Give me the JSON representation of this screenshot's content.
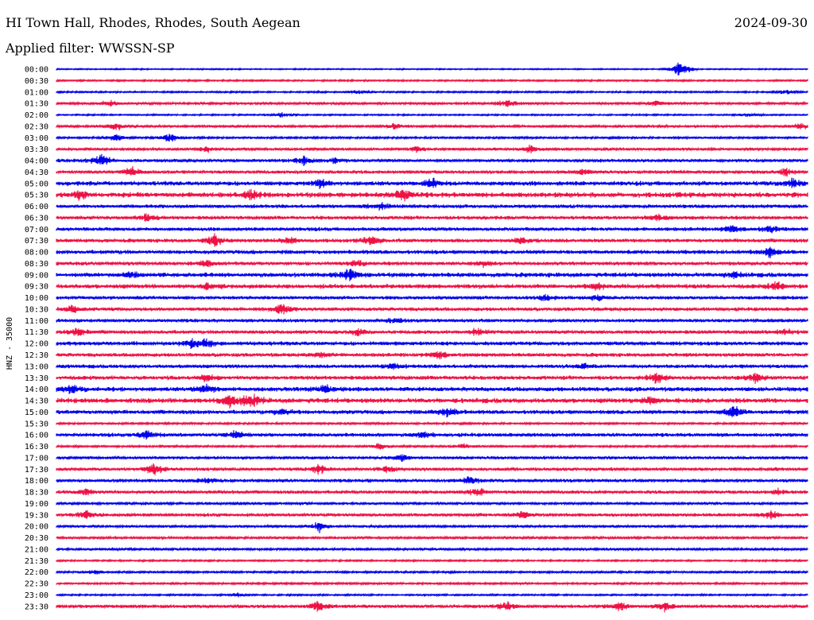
{
  "header": {
    "station": "HI Town Hall, Rhodes, Rhodes, South Aegean",
    "date": "2024-09-30",
    "filter": "Applied filter: WWSSN-SP"
  },
  "colors": {
    "even": "#0000ee",
    "odd": "#ee1144"
  },
  "chart_data": {
    "type": "line",
    "title": "HI Town Hall, Rhodes, Rhodes, South Aegean",
    "ylabel": "HNZ - 35000",
    "xlabel": "",
    "tick_labels": [
      "00:00",
      "00:30",
      "01:00",
      "01:30",
      "02:00",
      "02:30",
      "03:00",
      "03:30",
      "04:00",
      "04:30",
      "05:00",
      "05:30",
      "06:00",
      "06:30",
      "07:00",
      "07:30",
      "08:00",
      "08:30",
      "09:00",
      "09:30",
      "10:00",
      "10:30",
      "11:00",
      "11:30",
      "12:00",
      "12:30",
      "13:00",
      "13:30",
      "14:00",
      "14:30",
      "15:00",
      "15:30",
      "16:00",
      "16:30",
      "17:00",
      "17:30",
      "18:00",
      "18:30",
      "19:00",
      "19:30",
      "20:00",
      "20:30",
      "21:00",
      "21:30",
      "22:00",
      "22:30",
      "23:00",
      "23:30"
    ],
    "series": [
      {
        "noise": 0.6,
        "events": [
          [
            0.83,
            12
          ]
        ]
      },
      {
        "noise": 0.8,
        "events": []
      },
      {
        "noise": 0.8,
        "events": [
          [
            0.4,
            3
          ],
          [
            0.97,
            3
          ]
        ]
      },
      {
        "noise": 1.2,
        "events": [
          [
            0.07,
            4
          ],
          [
            0.6,
            6
          ],
          [
            0.8,
            4
          ]
        ]
      },
      {
        "noise": 0.7,
        "events": [
          [
            0.3,
            3
          ],
          [
            0.92,
            3
          ]
        ]
      },
      {
        "noise": 1.2,
        "events": [
          [
            0.08,
            5
          ],
          [
            0.45,
            4
          ],
          [
            0.99,
            4
          ]
        ]
      },
      {
        "noise": 1.0,
        "events": [
          [
            0.08,
            5
          ],
          [
            0.15,
            6
          ]
        ]
      },
      {
        "noise": 1.3,
        "events": [
          [
            0.2,
            4
          ],
          [
            0.48,
            4
          ],
          [
            0.63,
            6
          ]
        ]
      },
      {
        "noise": 1.5,
        "events": [
          [
            0.06,
            9
          ],
          [
            0.33,
            5
          ],
          [
            0.37,
            4
          ]
        ]
      },
      {
        "noise": 1.6,
        "events": [
          [
            0.1,
            7
          ],
          [
            0.7,
            4
          ],
          [
            0.97,
            5
          ]
        ]
      },
      {
        "noise": 2.2,
        "events": [
          [
            0.35,
            5
          ],
          [
            0.5,
            7
          ],
          [
            0.98,
            6
          ]
        ]
      },
      {
        "noise": 2.5,
        "events": [
          [
            0.26,
            6
          ],
          [
            0.46,
            8
          ],
          [
            0.03,
            5
          ]
        ]
      },
      {
        "noise": 1.8,
        "events": [
          [
            0.43,
            5
          ]
        ]
      },
      {
        "noise": 1.8,
        "events": [
          [
            0.12,
            5
          ],
          [
            0.8,
            5
          ]
        ]
      },
      {
        "noise": 1.8,
        "events": [
          [
            0.9,
            5
          ],
          [
            0.95,
            4
          ]
        ]
      },
      {
        "noise": 1.8,
        "events": [
          [
            0.21,
            8
          ],
          [
            0.31,
            5
          ],
          [
            0.42,
            7
          ],
          [
            0.62,
            5
          ]
        ]
      },
      {
        "noise": 2.0,
        "events": [
          [
            0.95,
            6
          ]
        ]
      },
      {
        "noise": 1.8,
        "events": [
          [
            0.2,
            5
          ],
          [
            0.4,
            4
          ],
          [
            0.57,
            4
          ]
        ]
      },
      {
        "noise": 2.2,
        "events": [
          [
            0.1,
            4
          ],
          [
            0.39,
            8
          ],
          [
            0.9,
            4
          ]
        ]
      },
      {
        "noise": 2.2,
        "events": [
          [
            0.2,
            4
          ],
          [
            0.72,
            4
          ],
          [
            0.96,
            6
          ]
        ]
      },
      {
        "noise": 1.6,
        "events": [
          [
            0.65,
            5
          ],
          [
            0.72,
            4
          ]
        ]
      },
      {
        "noise": 1.8,
        "events": [
          [
            0.02,
            5
          ],
          [
            0.3,
            7
          ]
        ]
      },
      {
        "noise": 1.6,
        "events": [
          [
            0.45,
            4
          ]
        ]
      },
      {
        "noise": 1.8,
        "events": [
          [
            0.03,
            5
          ],
          [
            0.4,
            4
          ],
          [
            0.56,
            5
          ],
          [
            0.97,
            4
          ]
        ]
      },
      {
        "noise": 2.0,
        "events": [
          [
            0.18,
            6
          ],
          [
            0.2,
            5
          ]
        ]
      },
      {
        "noise": 1.8,
        "events": [
          [
            0.51,
            6
          ],
          [
            0.35,
            4
          ]
        ]
      },
      {
        "noise": 1.8,
        "events": [
          [
            0.45,
            5
          ],
          [
            0.7,
            4
          ]
        ]
      },
      {
        "noise": 2.0,
        "events": [
          [
            0.2,
            6
          ],
          [
            0.8,
            7
          ],
          [
            0.93,
            6
          ]
        ]
      },
      {
        "noise": 2.2,
        "events": [
          [
            0.02,
            5
          ],
          [
            0.2,
            6
          ],
          [
            0.36,
            5
          ]
        ]
      },
      {
        "noise": 2.4,
        "events": [
          [
            0.23,
            8
          ],
          [
            0.26,
            9
          ],
          [
            0.79,
            5
          ]
        ]
      },
      {
        "noise": 2.0,
        "events": [
          [
            0.3,
            5
          ],
          [
            0.52,
            7
          ],
          [
            0.9,
            8
          ]
        ]
      },
      {
        "noise": 1.0,
        "events": []
      },
      {
        "noise": 1.8,
        "events": [
          [
            0.12,
            6
          ],
          [
            0.24,
            6
          ],
          [
            0.49,
            5
          ]
        ]
      },
      {
        "noise": 1.0,
        "events": [
          [
            0.43,
            4
          ],
          [
            0.54,
            4
          ]
        ]
      },
      {
        "noise": 1.4,
        "events": [
          [
            0.46,
            5
          ]
        ]
      },
      {
        "noise": 1.6,
        "events": [
          [
            0.13,
            8
          ],
          [
            0.35,
            7
          ],
          [
            0.44,
            4
          ]
        ]
      },
      {
        "noise": 1.6,
        "events": [
          [
            0.2,
            4
          ],
          [
            0.55,
            5
          ]
        ]
      },
      {
        "noise": 1.6,
        "events": [
          [
            0.04,
            4
          ],
          [
            0.56,
            6
          ],
          [
            0.96,
            4
          ]
        ]
      },
      {
        "noise": 1.2,
        "events": []
      },
      {
        "noise": 1.6,
        "events": [
          [
            0.04,
            5
          ],
          [
            0.62,
            5
          ],
          [
            0.95,
            5
          ]
        ]
      },
      {
        "noise": 1.2,
        "events": [
          [
            0.35,
            7
          ]
        ]
      },
      {
        "noise": 1.2,
        "events": []
      },
      {
        "noise": 1.2,
        "events": []
      },
      {
        "noise": 0.8,
        "events": []
      },
      {
        "noise": 1.0,
        "events": [
          [
            0.05,
            3
          ]
        ]
      },
      {
        "noise": 1.0,
        "events": []
      },
      {
        "noise": 0.8,
        "events": [
          [
            0.24,
            3
          ]
        ]
      },
      {
        "noise": 1.6,
        "events": [
          [
            0.35,
            9
          ],
          [
            0.6,
            5
          ],
          [
            0.75,
            6
          ],
          [
            0.81,
            7
          ]
        ]
      }
    ]
  }
}
